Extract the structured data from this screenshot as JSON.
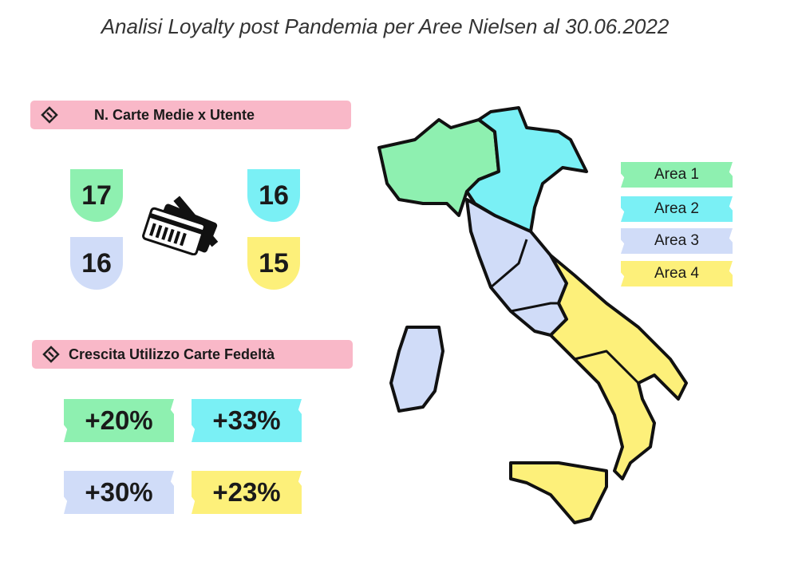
{
  "title": "Analisi Loyalty post Pandemia per Aree Nielsen al 30.06.2022",
  "colors": {
    "area1": "#8ef0b0",
    "area2": "#7af0f5",
    "area3": "#d0dcf8",
    "area4": "#fdf07a",
    "banner": "#f9b8c8"
  },
  "cards_section": {
    "title": "N. Carte Medie x Utente",
    "icon": "loyalty-card-icon",
    "values": {
      "area1": "17",
      "area2": "16",
      "area3": "16",
      "area4": "15"
    }
  },
  "growth_section": {
    "title": "Crescita Utilizzo Carte Fedeltà",
    "icon": "loyalty-card-icon",
    "values": {
      "area1": "+20%",
      "area2": "+33%",
      "area3": "+30%",
      "area4": "+23%"
    }
  },
  "legend": [
    "Area 1",
    "Area 2",
    "Area 3",
    "Area 4"
  ]
}
